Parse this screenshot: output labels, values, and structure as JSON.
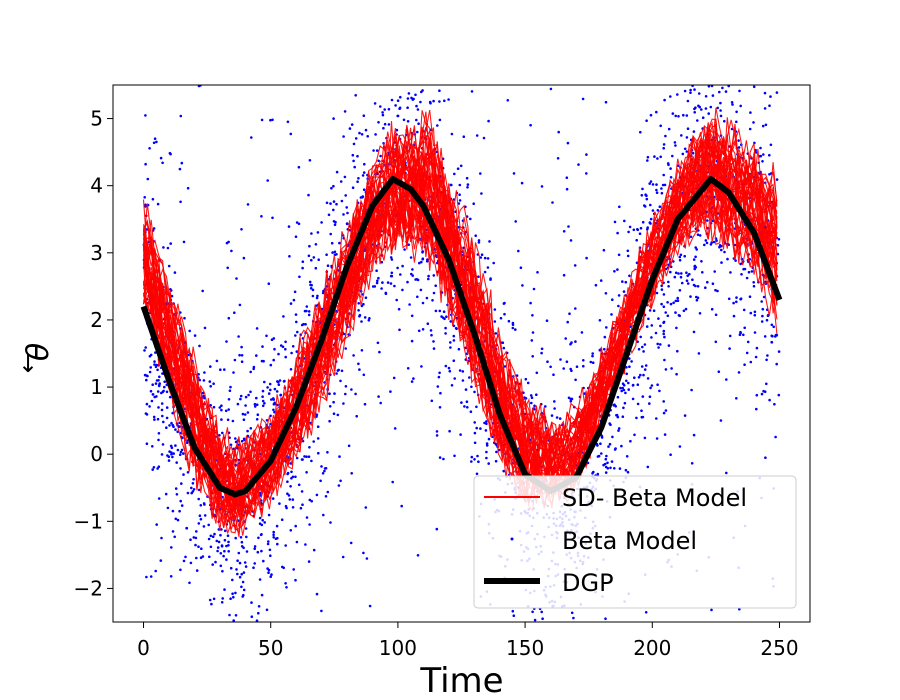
{
  "chart_data": {
    "type": "line",
    "title": "",
    "xlabel": "Time",
    "ylabel_symbol": "θ",
    "ylabel_arrow": "↓",
    "xlim": [
      -12,
      262
    ],
    "ylim": [
      -2.5,
      5.5
    ],
    "xticks": [
      0,
      50,
      100,
      150,
      200,
      250
    ],
    "xtick_labels": [
      "0",
      "50",
      "100",
      "150",
      "200",
      "250"
    ],
    "yticks": [
      -2,
      -1,
      0,
      1,
      2,
      3,
      4,
      5
    ],
    "ytick_labels": [
      "−2",
      "−1",
      "0",
      "1",
      "2",
      "3",
      "4",
      "5"
    ],
    "grid": false,
    "legend_position": "lower-right",
    "series": [
      {
        "name": "SD- Beta Model",
        "kind": "line-band",
        "color": "#ff0000",
        "x": [
          0,
          10,
          20,
          30,
          36,
          40,
          50,
          60,
          70,
          80,
          90,
          98,
          105,
          113,
          120,
          130,
          140,
          150,
          160,
          170,
          180,
          190,
          200,
          210,
          222,
          230,
          240,
          250
        ],
        "lower": [
          2.0,
          0.7,
          -0.5,
          -1.2,
          -1.25,
          -1.2,
          -0.8,
          -0.2,
          0.6,
          1.6,
          2.6,
          3.0,
          2.9,
          2.6,
          2.0,
          0.8,
          -0.3,
          -0.9,
          -0.9,
          -0.6,
          0.3,
          1.3,
          2.2,
          2.9,
          3.2,
          3.0,
          2.6,
          1.7
        ],
        "upper": [
          3.9,
          2.8,
          1.6,
          0.5,
          0.3,
          0.4,
          0.7,
          1.6,
          2.6,
          3.5,
          4.5,
          5.0,
          5.1,
          5.2,
          4.3,
          3.3,
          2.0,
          1.0,
          0.6,
          0.8,
          1.6,
          2.6,
          3.6,
          4.4,
          5.3,
          5.0,
          4.8,
          4.2
        ]
      },
      {
        "name": "Beta Model",
        "kind": "scatter",
        "color": "#0000ff",
        "x_range": [
          0,
          250
        ],
        "y_range": [
          -2.5,
          5.5
        ]
      },
      {
        "name": "DGP",
        "kind": "line",
        "color": "#000000",
        "x": [
          0,
          10,
          20,
          30,
          36,
          40,
          50,
          60,
          70,
          80,
          90,
          98,
          105,
          110,
          120,
          130,
          140,
          150,
          160,
          170,
          180,
          190,
          200,
          210,
          223,
          230,
          240,
          250
        ],
        "y": [
          2.2,
          1.1,
          0.1,
          -0.5,
          -0.6,
          -0.55,
          -0.1,
          0.7,
          1.7,
          2.8,
          3.7,
          4.1,
          3.95,
          3.7,
          2.9,
          1.8,
          0.6,
          -0.3,
          -0.55,
          -0.35,
          0.4,
          1.5,
          2.6,
          3.5,
          4.1,
          3.9,
          3.3,
          2.3
        ]
      }
    ],
    "legend": [
      {
        "label": "SD- Beta Model",
        "style": "line",
        "color": "#ff0000"
      },
      {
        "label": "Beta Model",
        "style": "dot",
        "color": "#0000ff"
      },
      {
        "label": "DGP",
        "style": "thick-line",
        "color": "#000000"
      }
    ]
  }
}
